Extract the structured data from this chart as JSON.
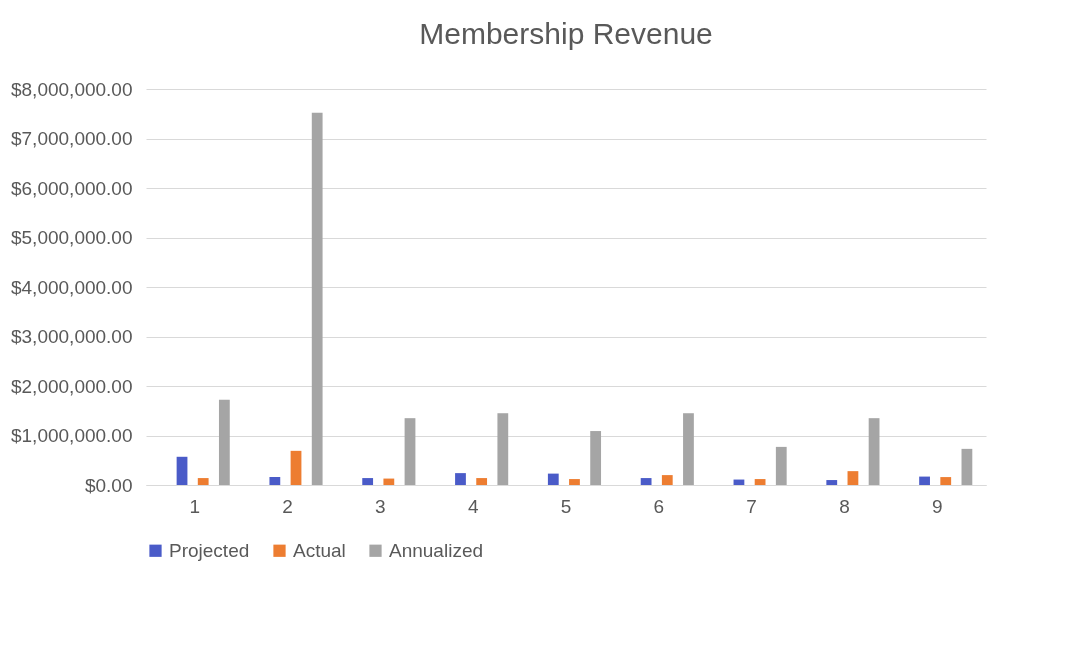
{
  "chart_data": {
    "type": "bar",
    "title": "Membership Revenue",
    "categories": [
      "1",
      "2",
      "3",
      "4",
      "5",
      "6",
      "7",
      "8",
      "9"
    ],
    "series": [
      {
        "name": "Projected",
        "color": "#4a5bc8",
        "values": [
          570000,
          160000,
          140000,
          240000,
          230000,
          140000,
          110000,
          100000,
          170000
        ]
      },
      {
        "name": "Actual",
        "color": "#ed7d31",
        "values": [
          140000,
          690000,
          130000,
          140000,
          120000,
          200000,
          120000,
          280000,
          160000
        ]
      },
      {
        "name": "Annualized",
        "color": "#a5a5a5",
        "values": [
          1720000,
          7520000,
          1350000,
          1450000,
          1090000,
          1450000,
          770000,
          1350000,
          730000
        ]
      }
    ],
    "ylim": [
      0,
      8000000
    ],
    "yticks": [
      {
        "value": 0,
        "label": "$0.00"
      },
      {
        "value": 1000000,
        "label": "$1,000,000.00"
      },
      {
        "value": 2000000,
        "label": "$2,000,000.00"
      },
      {
        "value": 3000000,
        "label": "$3,000,000.00"
      },
      {
        "value": 4000000,
        "label": "$4,000,000.00"
      },
      {
        "value": 5000000,
        "label": "$5,000,000.00"
      },
      {
        "value": 6000000,
        "label": "$6,000,000.00"
      },
      {
        "value": 7000000,
        "label": "$7,000,000.00"
      },
      {
        "value": 8000000,
        "label": "$8,000,000.00"
      }
    ],
    "grid": "y",
    "legend": "bottom"
  }
}
